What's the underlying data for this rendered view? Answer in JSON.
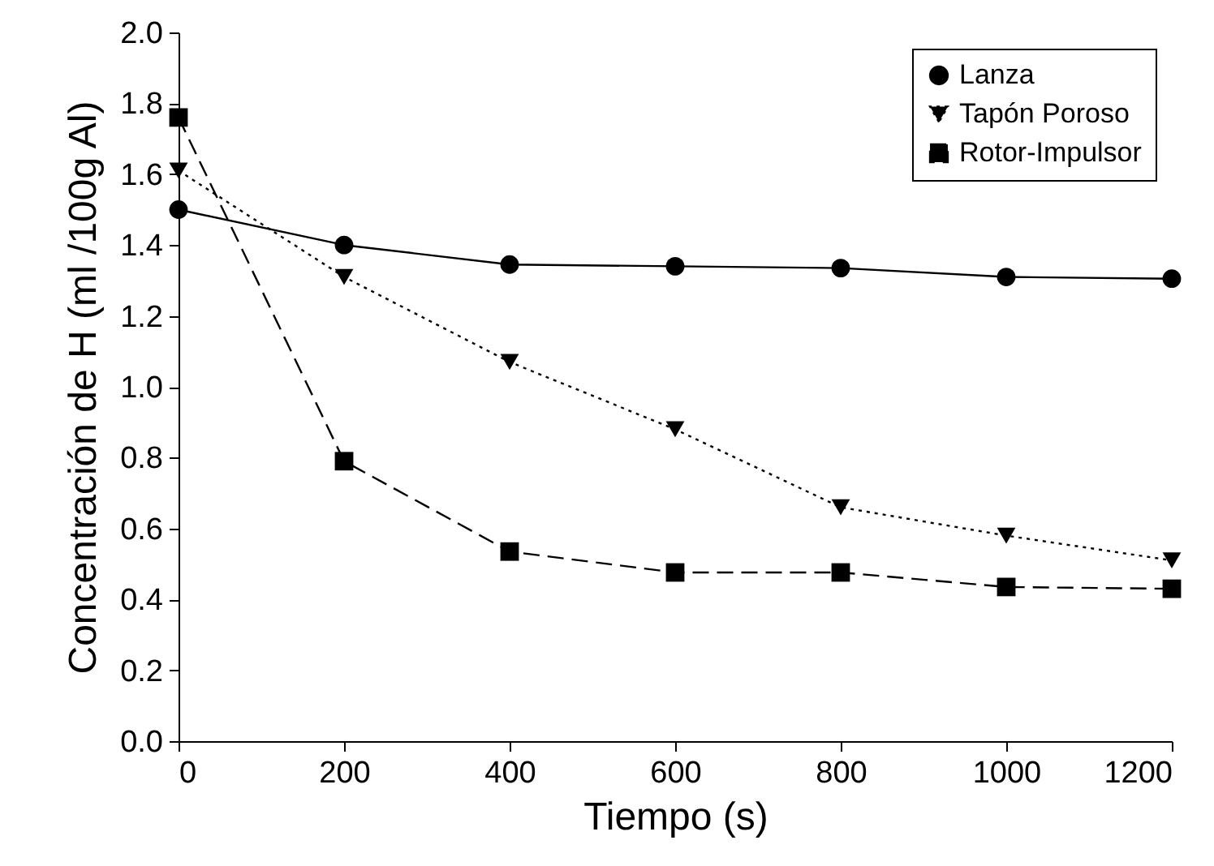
{
  "chart_data": {
    "type": "line",
    "xlabel": "Tiempo (s)",
    "ylabel": "Concentración de H (ml /100g Al)",
    "x": [
      0,
      200,
      400,
      600,
      800,
      1000,
      1200
    ],
    "series": [
      {
        "name": "Lanza",
        "color": "#000000",
        "marker": "circle",
        "line_style": "solid",
        "values": [
          1.5,
          1.4,
          1.345,
          1.34,
          1.335,
          1.31,
          1.305
        ]
      },
      {
        "name": "Tapón Poroso",
        "color": "#000000",
        "marker": "triangle",
        "line_style": "dotted",
        "values": [
          1.61,
          1.31,
          1.07,
          0.88,
          0.66,
          0.58,
          0.51
        ]
      },
      {
        "name": "Rotor-Impulsor",
        "color": "#000000",
        "marker": "square",
        "line_style": "dashed",
        "values": [
          1.76,
          0.79,
          0.535,
          0.476,
          0.476,
          0.435,
          0.43
        ]
      }
    ],
    "xlim": [
      0,
      1200
    ],
    "xticks": [
      0,
      200,
      400,
      600,
      800,
      1000,
      1200
    ],
    "ylim": [
      0,
      2.0
    ],
    "yticks": [
      {
        "value": 0,
        "label": "0.0"
      },
      0.2,
      0.4,
      0.6,
      0.8,
      {
        "value": 1,
        "label": "1.0"
      },
      1.2,
      1.4,
      1.6,
      1.8,
      {
        "value": 2,
        "label": "2.0"
      }
    ],
    "grid": false,
    "legend": "top right"
  }
}
